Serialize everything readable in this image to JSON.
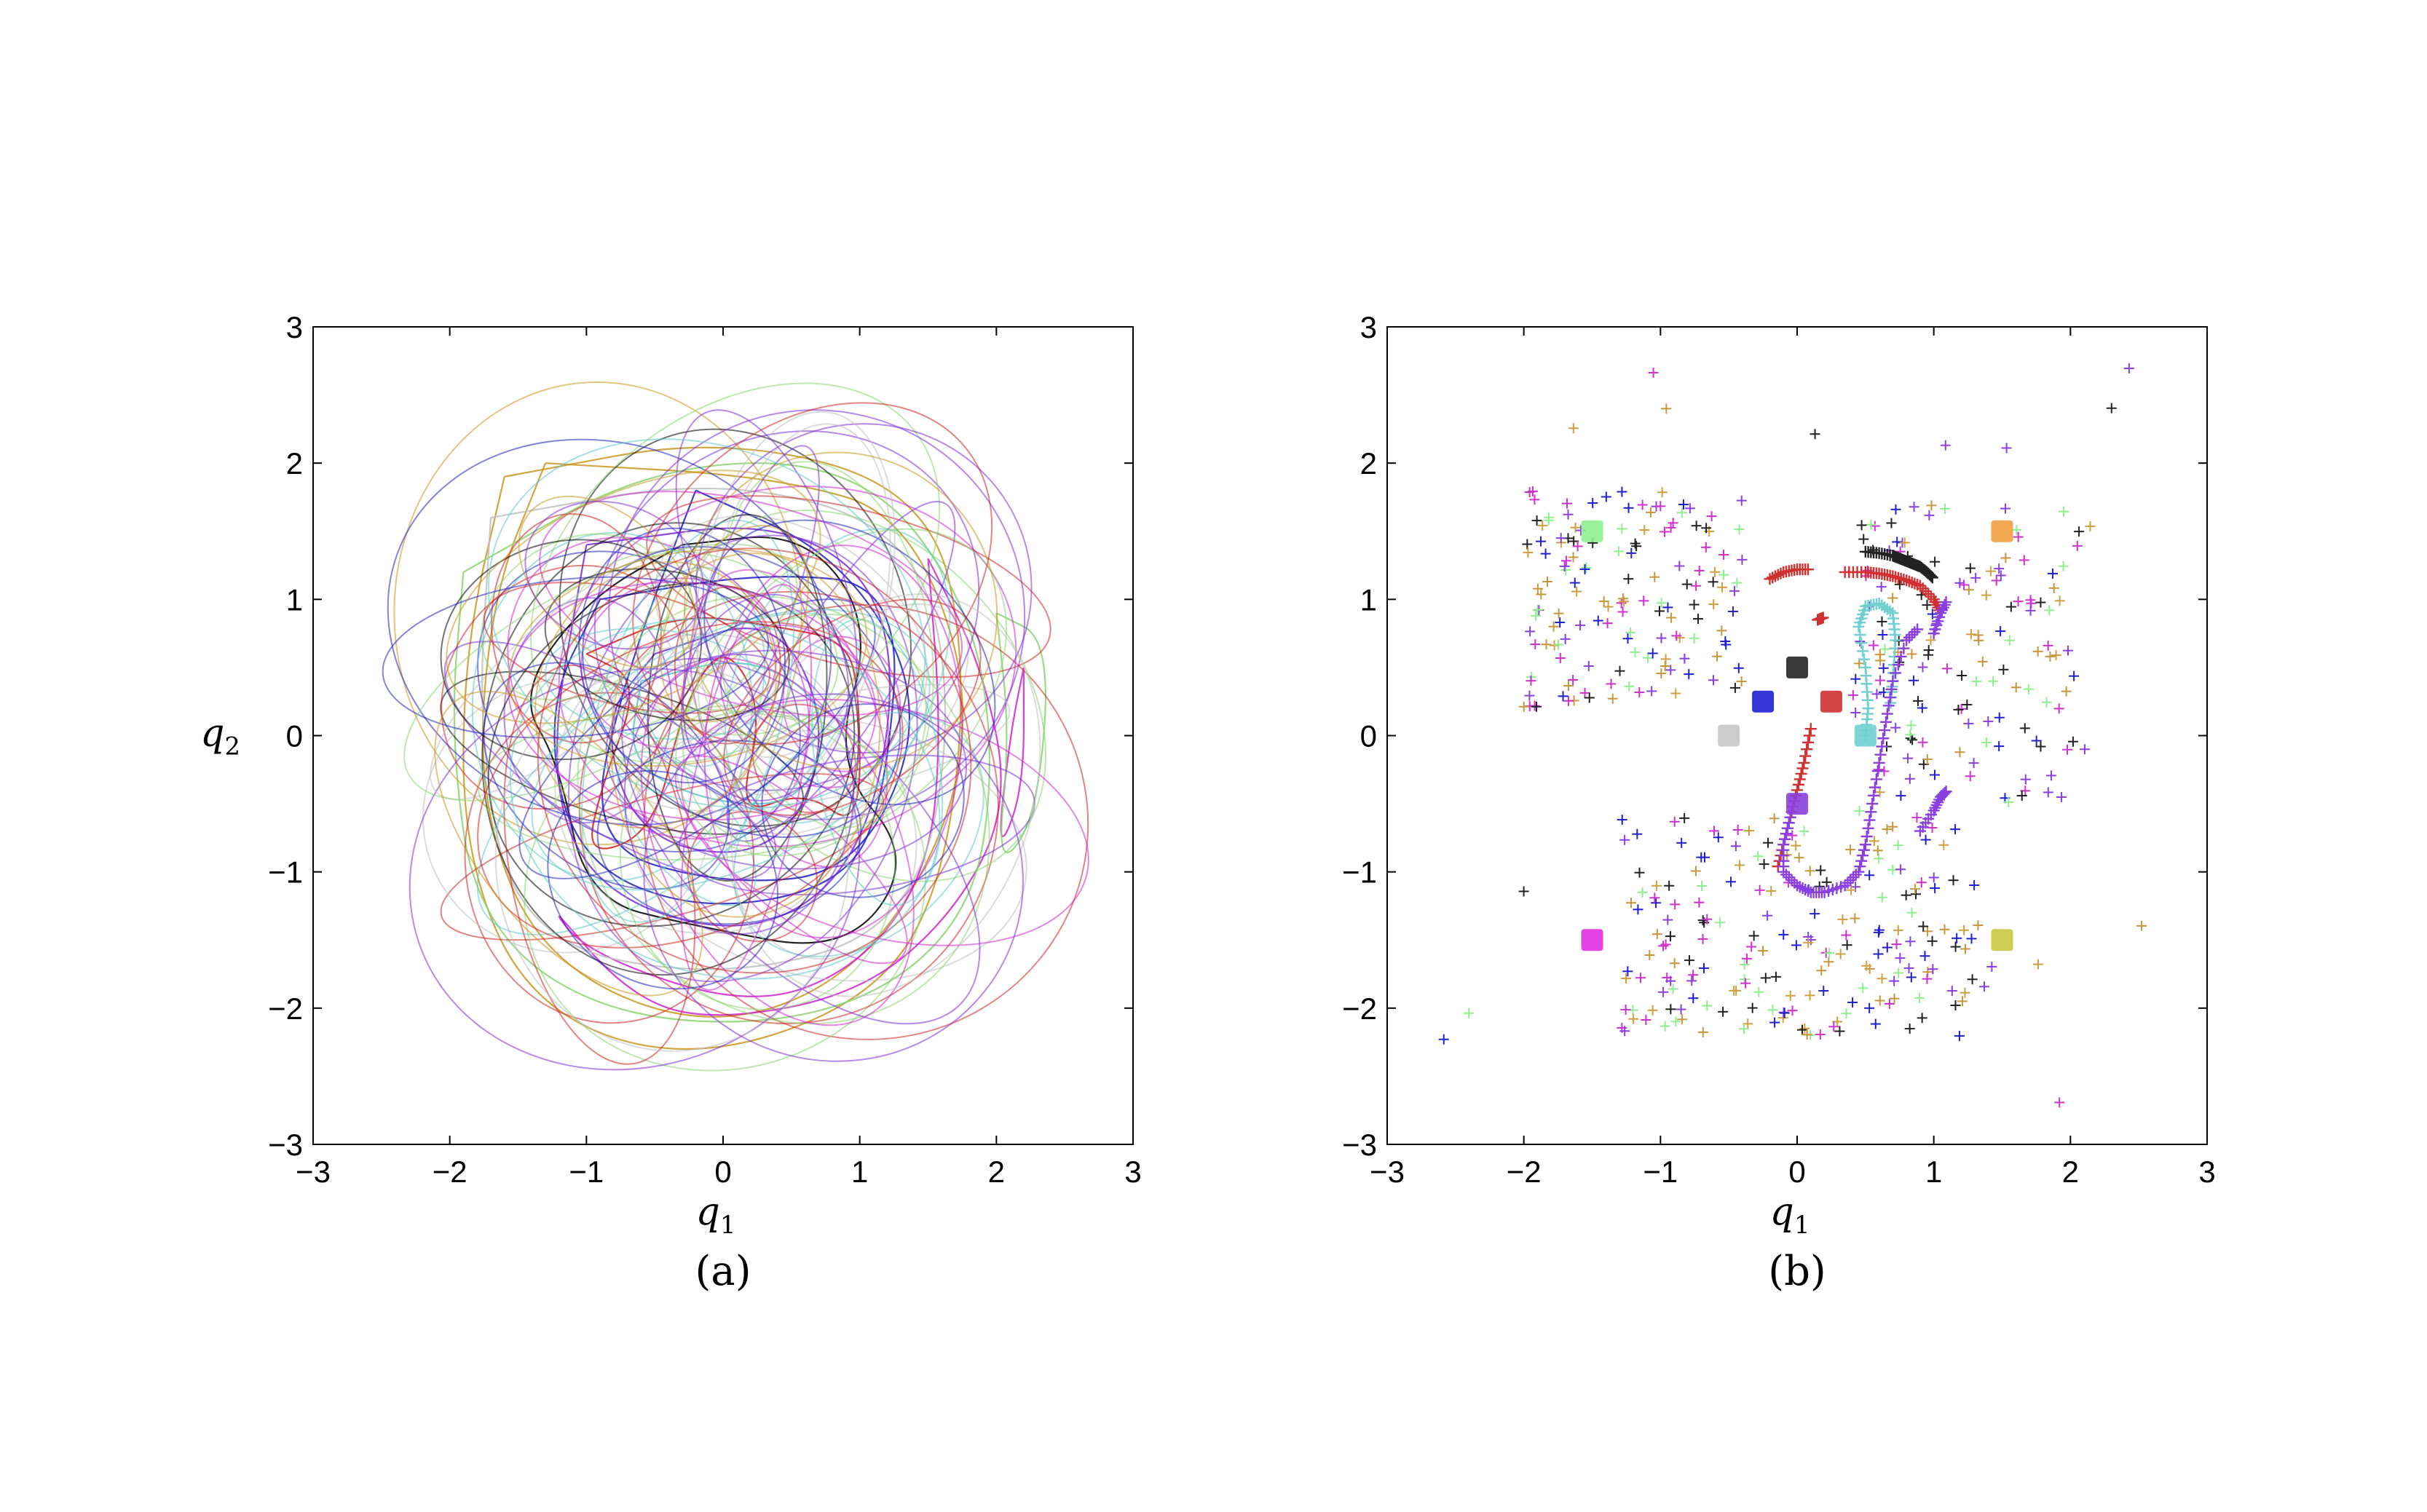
{
  "chart_data": [
    {
      "panel": "a",
      "type": "line",
      "caption": "(a)",
      "xlabel": "q",
      "xlabel_sub": "1",
      "ylabel": "q",
      "ylabel_sub": "2",
      "xlim": [
        -3,
        3
      ],
      "ylim": [
        -3,
        3
      ],
      "xticks": [
        "−3",
        "−2",
        "−1",
        "0",
        "1",
        "2",
        "3"
      ],
      "yticks": [
        "−3",
        "−2",
        "−1",
        "0",
        "1",
        "2",
        "3"
      ],
      "grid": false,
      "description_colors": [
        "#000000",
        "#1f1fbf",
        "#7a2ad8",
        "#d01f1f",
        "#c8961e",
        "#d020d0",
        "#8ad46e",
        "#5cc8c8",
        "#c0c0c0"
      ],
      "series": [
        {
          "color": "#000000",
          "points": [
            [
              -0.3,
              1.4
            ],
            [
              0.6,
              1.5
            ],
            [
              1.1,
              0.8
            ],
            [
              0.8,
              -0.2
            ],
            [
              1.4,
              -0.9
            ],
            [
              0.9,
              -1.6
            ],
            [
              -0.2,
              -1.4
            ],
            [
              -1.0,
              -1.2
            ],
            [
              -1.2,
              -0.2
            ],
            [
              -1.5,
              0.3
            ],
            [
              -1.0,
              1.0
            ],
            [
              -0.3,
              1.4
            ]
          ]
        },
        {
          "color": "#1f1fbf",
          "points": [
            [
              -0.9,
              1.0
            ],
            [
              0.3,
              1.2
            ],
            [
              1.3,
              1.1
            ],
            [
              1.2,
              -0.4
            ],
            [
              0.9,
              -1.1
            ],
            [
              -0.2,
              -1.3
            ],
            [
              -1.1,
              -0.9
            ],
            [
              -1.3,
              0.2
            ],
            [
              -0.9,
              1.0
            ]
          ]
        },
        {
          "color": "#1f1fbf",
          "points": [
            [
              -0.2,
              1.8
            ],
            [
              0.9,
              1.3
            ],
            [
              1.5,
              0.2
            ],
            [
              1.0,
              -1.0
            ],
            [
              0.0,
              -1.1
            ],
            [
              -1.0,
              -0.8
            ],
            [
              -0.7,
              0.5
            ],
            [
              -0.2,
              1.8
            ]
          ]
        },
        {
          "color": "#7a2ad8",
          "points": [
            [
              -1.0,
              1.4
            ],
            [
              0.5,
              1.6
            ],
            [
              1.3,
              0.9
            ],
            [
              1.1,
              -0.8
            ],
            [
              0.3,
              -1.5
            ],
            [
              -0.9,
              -1.2
            ],
            [
              -1.3,
              -0.3
            ],
            [
              -1.0,
              1.4
            ]
          ]
        },
        {
          "color": "#7a2ad8",
          "points": [
            [
              -0.5,
              0.6
            ],
            [
              0.4,
              0.9
            ],
            [
              0.8,
              0.0
            ],
            [
              0.4,
              -0.9
            ],
            [
              -0.6,
              -0.8
            ],
            [
              -0.9,
              0.1
            ],
            [
              -0.5,
              0.6
            ]
          ]
        },
        {
          "color": "#d01f1f",
          "points": [
            [
              -1.0,
              0.6
            ],
            [
              -0.6,
              0.4
            ],
            [
              -0.9,
              -0.4
            ],
            [
              -1.0,
              -0.9
            ],
            [
              -0.5,
              -0.7
            ],
            [
              -0.3,
              0.2
            ],
            [
              0.0,
              0.7
            ],
            [
              0.3,
              0.2
            ],
            [
              0.1,
              -0.6
            ],
            [
              0.6,
              -0.4
            ],
            [
              1.0,
              -0.7
            ],
            [
              1.0,
              0.3
            ],
            [
              0.9,
              0.7
            ],
            [
              0.4,
              0.8
            ],
            [
              -0.3,
              0.9
            ],
            [
              -1.0,
              0.6
            ]
          ]
        },
        {
          "color": "#c8961e",
          "points": [
            [
              -1.6,
              1.9
            ],
            [
              0.0,
              2.2
            ],
            [
              1.5,
              1.8
            ],
            [
              1.8,
              0.5
            ],
            [
              1.6,
              -1.2
            ],
            [
              1.0,
              -2.0
            ],
            [
              -0.3,
              -2.4
            ],
            [
              -1.4,
              -2.0
            ],
            [
              -1.9,
              -0.9
            ],
            [
              -1.9,
              0.6
            ],
            [
              -1.6,
              1.9
            ]
          ]
        },
        {
          "color": "#c8961e",
          "points": [
            [
              -1.3,
              2.0
            ],
            [
              0.4,
              1.9
            ],
            [
              1.4,
              1.6
            ],
            [
              1.9,
              0.0
            ],
            [
              1.2,
              -1.6
            ],
            [
              0.0,
              -2.2
            ],
            [
              -1.3,
              -1.7
            ],
            [
              -1.8,
              -0.5
            ],
            [
              -1.7,
              1.0
            ],
            [
              -1.3,
              2.0
            ]
          ]
        },
        {
          "color": "#d020d0",
          "points": [
            [
              1.5,
              1.3
            ],
            [
              1.9,
              0.5
            ],
            [
              2.1,
              -0.5
            ],
            [
              1.7,
              -1.3
            ],
            [
              1.0,
              -1.9
            ],
            [
              -0.1,
              -2.1
            ],
            [
              -0.7,
              -1.9
            ],
            [
              -1.3,
              -1.2
            ],
            [
              -1.0,
              -1.6
            ],
            [
              0.2,
              -2.0
            ],
            [
              1.0,
              -1.7
            ],
            [
              1.5,
              -1.0
            ],
            [
              1.6,
              0.0
            ],
            [
              1.5,
              1.3
            ]
          ]
        },
        {
          "color": "#d020d0",
          "points": [
            [
              2.2,
              0.5
            ],
            [
              2.2,
              -0.4
            ],
            [
              2.0,
              -0.9
            ],
            [
              2.1,
              0.0
            ],
            [
              2.2,
              0.5
            ]
          ]
        },
        {
          "color": "#8ad46e",
          "points": [
            [
              -1.9,
              1.2
            ],
            [
              -0.5,
              2.0
            ],
            [
              1.0,
              2.0
            ],
            [
              1.8,
              1.0
            ],
            [
              2.0,
              -0.2
            ],
            [
              1.8,
              -1.4
            ],
            [
              0.8,
              -2.1
            ],
            [
              -0.8,
              -2.1
            ],
            [
              -1.8,
              -1.4
            ],
            [
              -2.0,
              0.0
            ],
            [
              -1.9,
              1.2
            ]
          ]
        },
        {
          "color": "#8ad46e",
          "points": [
            [
              2.0,
              0.9
            ],
            [
              2.4,
              0.7
            ],
            [
              2.3,
              -0.6
            ],
            [
              2.0,
              -1.0
            ],
            [
              2.1,
              0.0
            ],
            [
              2.0,
              0.9
            ]
          ]
        },
        {
          "color": "#5cc8c8",
          "points": [
            [
              -0.6,
              0.4
            ],
            [
              0.2,
              0.6
            ],
            [
              0.8,
              0.2
            ],
            [
              0.6,
              -0.5
            ],
            [
              -0.1,
              -0.5
            ],
            [
              -0.7,
              -0.2
            ],
            [
              -0.6,
              0.4
            ]
          ]
        },
        {
          "color": "#c0c0c0",
          "points": [
            [
              -1.7,
              1.6
            ],
            [
              0.0,
              1.9
            ],
            [
              1.4,
              1.5
            ],
            [
              1.7,
              0.2
            ],
            [
              1.4,
              -1.4
            ],
            [
              0.0,
              -1.8
            ],
            [
              -1.5,
              -1.5
            ],
            [
              -1.8,
              0.0
            ],
            [
              -1.7,
              1.6
            ]
          ]
        }
      ]
    },
    {
      "panel": "b",
      "type": "scatter",
      "caption": "(b)",
      "xlabel": "q",
      "xlabel_sub": "1",
      "ylabel": "",
      "ylabel_sub": "",
      "xlim": [
        -3,
        3
      ],
      "ylim": [
        -3,
        3
      ],
      "xticks": [
        "−3",
        "−2",
        "−1",
        "0",
        "1",
        "2",
        "3"
      ],
      "yticks": [
        "−3",
        "−2",
        "−1",
        "0",
        "1",
        "2",
        "3"
      ],
      "grid": false,
      "marker": "+",
      "large_markers": [
        {
          "color": "#90ee90",
          "x": -1.5,
          "y": 1.5
        },
        {
          "color": "#f0a040",
          "x": 1.5,
          "y": 1.5
        },
        {
          "color": "#222222",
          "x": 0.0,
          "y": 0.5
        },
        {
          "color": "#2020d0",
          "x": -0.25,
          "y": 0.25
        },
        {
          "color": "#d03030",
          "x": 0.25,
          "y": 0.25
        },
        {
          "color": "#c8c8c8",
          "x": -0.5,
          "y": 0.0
        },
        {
          "color": "#70d0d0",
          "x": 0.5,
          "y": 0.0
        },
        {
          "color": "#8a40e0",
          "x": 0.0,
          "y": -0.5
        },
        {
          "color": "#e030e0",
          "x": -1.5,
          "y": -1.5
        },
        {
          "color": "#c8c840",
          "x": 1.5,
          "y": -1.5
        }
      ],
      "curves": [
        {
          "color": "#222222",
          "points": [
            [
              0.5,
              1.35
            ],
            [
              0.6,
              1.34
            ],
            [
              0.7,
              1.32
            ],
            [
              0.75,
              1.3
            ],
            [
              0.8,
              1.28
            ],
            [
              0.85,
              1.26
            ],
            [
              0.9,
              1.24
            ],
            [
              0.95,
              1.2
            ],
            [
              1.0,
              1.15
            ]
          ]
        },
        {
          "color": "#d03030",
          "points": [
            [
              0.35,
              1.2
            ],
            [
              0.5,
              1.2
            ],
            [
              0.6,
              1.19
            ],
            [
              0.7,
              1.17
            ],
            [
              0.8,
              1.14
            ],
            [
              0.9,
              1.1
            ],
            [
              1.0,
              1.0
            ],
            [
              1.05,
              0.9
            ]
          ]
        },
        {
          "color": "#d03030",
          "points": [
            [
              -0.2,
              1.15
            ],
            [
              -0.1,
              1.2
            ],
            [
              0.0,
              1.22
            ],
            [
              0.1,
              1.22
            ]
          ]
        },
        {
          "color": "#d03030",
          "points": [
            [
              0.1,
              0.05
            ],
            [
              0.05,
              -0.2
            ],
            [
              0.0,
              -0.4
            ],
            [
              -0.05,
              -0.6
            ],
            [
              -0.1,
              -0.8
            ],
            [
              -0.15,
              -1.0
            ]
          ]
        },
        {
          "color": "#d03030",
          "points": [
            [
              0.15,
              0.85
            ],
            [
              0.2,
              0.87
            ]
          ]
        },
        {
          "color": "#70d0d0",
          "points": [
            [
              0.5,
              0.0
            ],
            [
              0.52,
              0.2
            ],
            [
              0.5,
              0.5
            ],
            [
              0.45,
              0.8
            ],
            [
              0.5,
              0.95
            ],
            [
              0.6,
              0.97
            ],
            [
              0.7,
              0.9
            ],
            [
              0.72,
              0.7
            ],
            [
              0.7,
              0.4
            ],
            [
              0.68,
              0.2
            ]
          ]
        },
        {
          "color": "#8a40e0",
          "points": [
            [
              -0.05,
              -0.6
            ],
            [
              -0.1,
              -0.8
            ],
            [
              -0.1,
              -1.0
            ],
            [
              0.0,
              -1.1
            ],
            [
              0.1,
              -1.15
            ],
            [
              0.2,
              -1.15
            ],
            [
              0.35,
              -1.1
            ],
            [
              0.45,
              -1.0
            ],
            [
              0.5,
              -0.8
            ],
            [
              0.55,
              -0.5
            ],
            [
              0.6,
              -0.2
            ],
            [
              0.65,
              0.1
            ],
            [
              0.7,
              0.4
            ],
            [
              0.8,
              0.7
            ],
            [
              0.9,
              0.8
            ]
          ]
        },
        {
          "color": "#8a40e0",
          "points": [
            [
              1.0,
              0.75
            ],
            [
              1.05,
              0.9
            ],
            [
              1.1,
              1.0
            ]
          ]
        },
        {
          "color": "#8a40e0",
          "points": [
            [
              0.9,
              -0.7
            ],
            [
              1.0,
              -0.55
            ],
            [
              1.05,
              -0.45
            ],
            [
              1.1,
              -0.4
            ]
          ]
        }
      ],
      "scatter_colors": [
        "#90ee90",
        "#c8963c",
        "#222222",
        "#2020d0",
        "#8a40e0",
        "#d030d0",
        "#d0a040"
      ],
      "scatter_count": 520
    }
  ]
}
